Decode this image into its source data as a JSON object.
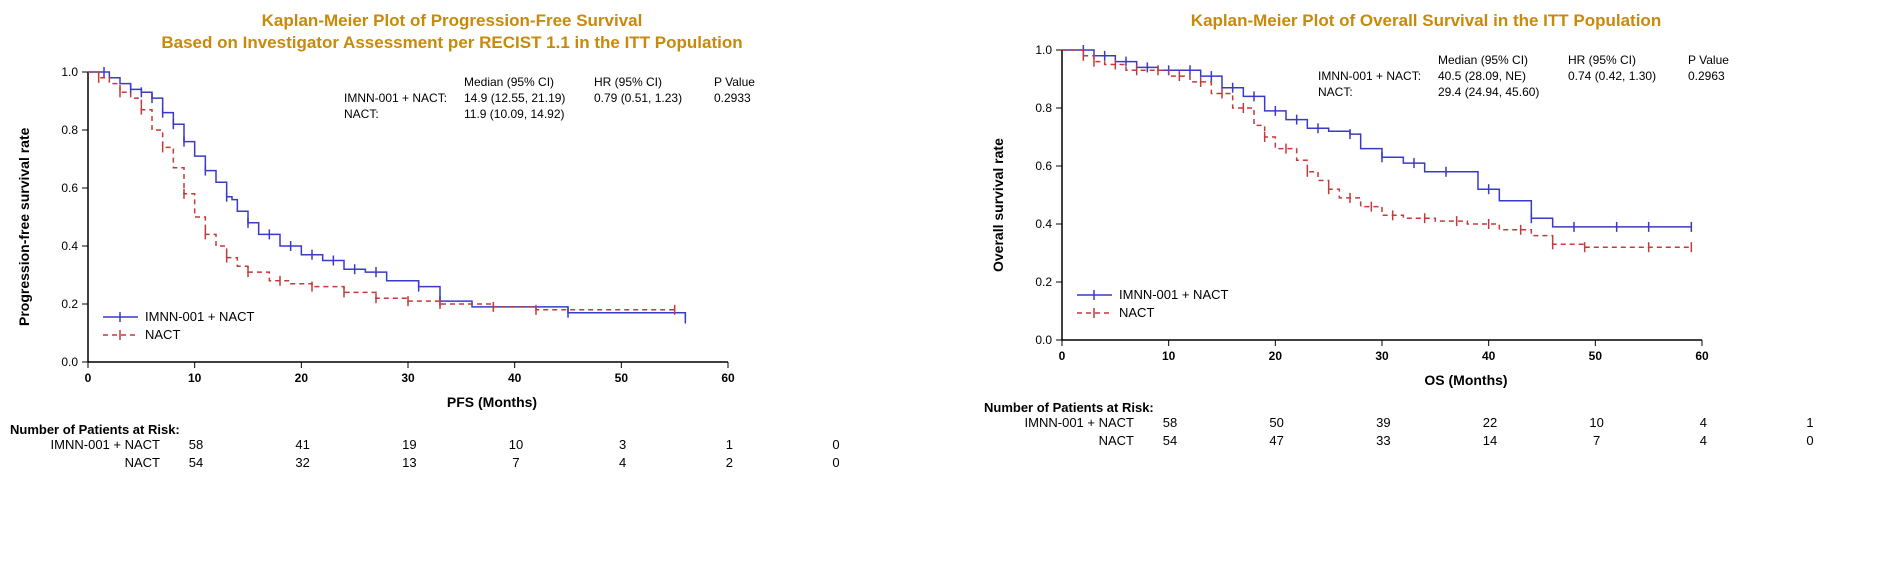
{
  "colors": {
    "title": "#c78a0a",
    "axis": "#000000",
    "text": "#000000",
    "series_a": "#3a3ac8",
    "series_b": "#c23a3a",
    "background": "#ffffff"
  },
  "chart_common": {
    "ylim": [
      0,
      1.0
    ],
    "ytick_step": 0.2,
    "xlim": [
      0,
      60
    ],
    "xtick_step": 10,
    "line_width": 1.5,
    "tick_font_size": 12,
    "axis_font_size": 14,
    "title_font_size": 17,
    "censor_tick_len": 5
  },
  "panels": [
    {
      "title_line1": "Kaplan-Meier Plot of Progression-Free Survival",
      "title_line2": "Based on Investigator Assessment per RECIST 1.1 in the ITT Population",
      "ylabel": "Progression-free survival rate",
      "xlabel": "PFS (Months)",
      "stats": {
        "header_median": "Median (95% CI)",
        "header_hr": "HR (95% CI)",
        "header_p": "P Value",
        "rows": [
          {
            "label": "IMNN-001 + NACT:",
            "median": "14.9 (12.55, 21.19)",
            "hr": "0.79 (0.51, 1.23)",
            "p": "0.2933"
          },
          {
            "label": "NACT:",
            "median": "11.9 (10.09, 14.92)",
            "hr": "",
            "p": ""
          }
        ]
      },
      "legend": [
        {
          "label": "IMNN-001 + NACT",
          "color_key": "series_a"
        },
        {
          "label": "NACT",
          "color_key": "series_b"
        }
      ],
      "series": [
        {
          "name": "IMNN-001 + NACT",
          "color_key": "series_a",
          "dash": "",
          "points": [
            [
              0,
              1.0
            ],
            [
              1.5,
              1.0
            ],
            [
              2,
              0.98
            ],
            [
              3,
              0.96
            ],
            [
              4,
              0.94
            ],
            [
              5,
              0.93
            ],
            [
              6,
              0.91
            ],
            [
              7,
              0.86
            ],
            [
              8,
              0.82
            ],
            [
              9,
              0.76
            ],
            [
              10,
              0.71
            ],
            [
              11,
              0.66
            ],
            [
              12,
              0.62
            ],
            [
              13,
              0.57
            ],
            [
              13.5,
              0.56
            ],
            [
              14,
              0.52
            ],
            [
              15,
              0.48
            ],
            [
              16,
              0.44
            ],
            [
              18,
              0.4
            ],
            [
              20,
              0.37
            ],
            [
              22,
              0.35
            ],
            [
              24,
              0.32
            ],
            [
              26,
              0.31
            ],
            [
              28,
              0.28
            ],
            [
              31,
              0.26
            ],
            [
              33,
              0.21
            ],
            [
              36,
              0.19
            ],
            [
              39,
              0.19
            ],
            [
              45,
              0.17
            ],
            [
              56,
              0.15
            ]
          ],
          "censors": [
            1.5,
            4,
            5,
            6,
            7,
            8,
            9,
            11,
            13,
            15,
            17,
            19,
            21,
            23,
            25,
            27,
            31,
            33,
            45,
            56
          ]
        },
        {
          "name": "NACT",
          "color_key": "series_b",
          "dash": "5,4",
          "points": [
            [
              0,
              1.0
            ],
            [
              1,
              0.98
            ],
            [
              2,
              0.96
            ],
            [
              3,
              0.93
            ],
            [
              4,
              0.91
            ],
            [
              5,
              0.87
            ],
            [
              6,
              0.8
            ],
            [
              7,
              0.74
            ],
            [
              8,
              0.67
            ],
            [
              9,
              0.58
            ],
            [
              10,
              0.5
            ],
            [
              11,
              0.44
            ],
            [
              12,
              0.4
            ],
            [
              13,
              0.36
            ],
            [
              14,
              0.33
            ],
            [
              15,
              0.31
            ],
            [
              17,
              0.28
            ],
            [
              19,
              0.27
            ],
            [
              21,
              0.26
            ],
            [
              24,
              0.24
            ],
            [
              27,
              0.22
            ],
            [
              30,
              0.21
            ],
            [
              33,
              0.2
            ],
            [
              38,
              0.19
            ],
            [
              42,
              0.18
            ],
            [
              55,
              0.18
            ]
          ],
          "censors": [
            1,
            3,
            5,
            7,
            9,
            11,
            13,
            15,
            18,
            21,
            24,
            27,
            30,
            33,
            38,
            42,
            55
          ]
        }
      ],
      "risk_table": {
        "header": "Number of Patients at Risk:",
        "rows": [
          {
            "label": "IMNN-001 + NACT",
            "values": [
              58,
              41,
              19,
              10,
              3,
              1,
              0
            ]
          },
          {
            "label": "NACT",
            "values": [
              54,
              32,
              13,
              7,
              4,
              2,
              0
            ]
          }
        ]
      }
    },
    {
      "title_line1": "Kaplan-Meier Plot of Overall Survival in the ITT Population",
      "title_line2": "",
      "ylabel": "Overall survival rate",
      "xlabel": "OS (Months)",
      "stats": {
        "header_median": "Median (95% CI)",
        "header_hr": "HR (95% CI)",
        "header_p": "P Value",
        "rows": [
          {
            "label": "IMNN-001 + NACT:",
            "median": "40.5 (28.09, NE)",
            "hr": "0.74 (0.42, 1.30)",
            "p": "0.2963"
          },
          {
            "label": "NACT:",
            "median": "29.4 (24.94, 45.60)",
            "hr": "",
            "p": ""
          }
        ]
      },
      "legend": [
        {
          "label": "IMNN-001 + NACT",
          "color_key": "series_a"
        },
        {
          "label": "NACT",
          "color_key": "series_b"
        }
      ],
      "series": [
        {
          "name": "IMNN-001 + NACT",
          "color_key": "series_a",
          "dash": "",
          "points": [
            [
              0,
              1.0
            ],
            [
              2,
              1.0
            ],
            [
              3,
              0.98
            ],
            [
              5,
              0.96
            ],
            [
              7,
              0.94
            ],
            [
              9,
              0.93
            ],
            [
              11,
              0.93
            ],
            [
              13,
              0.91
            ],
            [
              15,
              0.87
            ],
            [
              17,
              0.84
            ],
            [
              19,
              0.79
            ],
            [
              21,
              0.76
            ],
            [
              23,
              0.73
            ],
            [
              25,
              0.72
            ],
            [
              27,
              0.71
            ],
            [
              28,
              0.66
            ],
            [
              30,
              0.63
            ],
            [
              32,
              0.61
            ],
            [
              34,
              0.58
            ],
            [
              37,
              0.58
            ],
            [
              39,
              0.52
            ],
            [
              41,
              0.48
            ],
            [
              44,
              0.42
            ],
            [
              46,
              0.39
            ],
            [
              50,
              0.39
            ],
            [
              55,
              0.39
            ],
            [
              59,
              0.39
            ]
          ],
          "censors": [
            2,
            4,
            6,
            8,
            10,
            12,
            14,
            16,
            18,
            20,
            22,
            24,
            27,
            30,
            33,
            36,
            40,
            44,
            48,
            52,
            55,
            59
          ]
        },
        {
          "name": "NACT",
          "color_key": "series_b",
          "dash": "5,4",
          "points": [
            [
              0,
              1.0
            ],
            [
              2,
              0.98
            ],
            [
              3,
              0.96
            ],
            [
              4,
              0.95
            ],
            [
              6,
              0.93
            ],
            [
              8,
              0.93
            ],
            [
              10,
              0.91
            ],
            [
              12,
              0.89
            ],
            [
              14,
              0.85
            ],
            [
              16,
              0.8
            ],
            [
              18,
              0.74
            ],
            [
              19,
              0.7
            ],
            [
              20,
              0.66
            ],
            [
              22,
              0.62
            ],
            [
              23,
              0.58
            ],
            [
              24,
              0.55
            ],
            [
              25,
              0.52
            ],
            [
              26,
              0.49
            ],
            [
              28,
              0.46
            ],
            [
              30,
              0.43
            ],
            [
              32,
              0.42
            ],
            [
              35,
              0.41
            ],
            [
              38,
              0.4
            ],
            [
              41,
              0.38
            ],
            [
              44,
              0.36
            ],
            [
              46,
              0.33
            ],
            [
              49,
              0.32
            ],
            [
              55,
              0.32
            ],
            [
              59,
              0.32
            ]
          ],
          "censors": [
            2,
            3,
            5,
            7,
            9,
            11,
            13,
            15,
            17,
            19,
            21,
            23,
            25,
            27,
            29,
            31,
            34,
            37,
            40,
            43,
            46,
            49,
            55,
            59
          ]
        }
      ],
      "risk_table": {
        "header": "Number of Patients at Risk:",
        "rows": [
          {
            "label": "IMNN-001 + NACT",
            "values": [
              58,
              50,
              39,
              22,
              10,
              4,
              1
            ]
          },
          {
            "label": "NACT",
            "values": [
              54,
              47,
              33,
              14,
              7,
              4,
              0
            ]
          }
        ]
      }
    }
  ]
}
